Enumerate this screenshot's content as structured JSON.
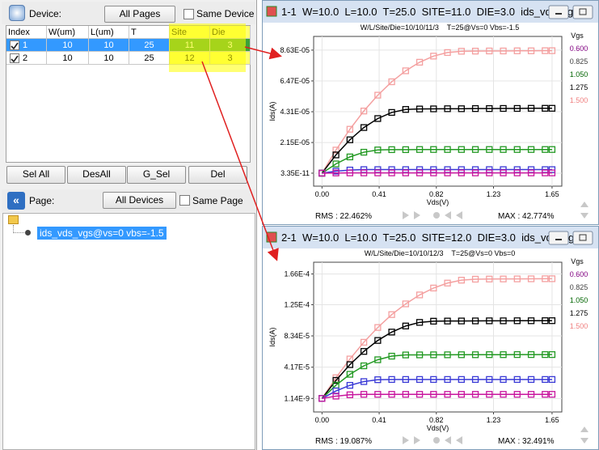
{
  "device_panel": {
    "label": "Device:",
    "all_pages_button": "All Pages",
    "same_device_checkbox": "Same Device",
    "table": {
      "columns": [
        "Index",
        "W(um)",
        "L(um)",
        "T",
        "Site",
        "Die"
      ],
      "rows": [
        [
          1,
          10,
          10,
          25,
          11,
          3
        ],
        [
          2,
          10,
          10,
          25,
          12,
          3
        ]
      ]
    }
  },
  "buttons": [
    "Sel All",
    "DesAll",
    "G_Sel",
    "Del"
  ],
  "page_panel": {
    "label": "Page:",
    "all_devices_button": "All Devices",
    "same_page_checkbox": "Same Page",
    "tree_item": "ids_vds_vgs@vs=0 vbs=-1.5"
  },
  "charts": [
    {
      "window_title": "1-1  W=10.0  L=10.0  T=25.0  SITE=11.0  DIE=3.0  ids_vds_vgs...",
      "rms": "RMS : 22.462%",
      "max": "MAX : 42.774%",
      "chart_data": {
        "type": "line",
        "subtitle": "W/L/Site/Die=10/10/11/3    T=25@Vs=0 Vbs=-1.5",
        "y_label": "Ids(A)",
        "x_label": "Vds(V)",
        "legend_title": "Vgs",
        "grid": true,
        "x": [
          0,
          0.1,
          0.2,
          0.3,
          0.4,
          0.5,
          0.6,
          0.7,
          0.8,
          0.9,
          1.0,
          1.1,
          1.2,
          1.3,
          1.4,
          1.5,
          1.6,
          1.65
        ],
        "xlim": [
          -0.06,
          1.72
        ],
        "xticks": [
          {
            "value": 0,
            "label": "0.00"
          },
          0.41,
          0.82,
          1.23,
          1.65
        ],
        "ylim": [
          -9.1e-06,
          9.59e-05
        ],
        "yticks": [
          {
            "value": 3.35e-11,
            "label": "3.35E-11"
          },
          {
            "value": 2.15e-05,
            "label": "2.15E-05"
          },
          {
            "value": 4.31e-05,
            "label": "4.31E-05"
          },
          {
            "value": 6.47e-05,
            "label": "6.47E-05"
          },
          {
            "value": 8.63e-05,
            "label": "8.63E-05"
          }
        ],
        "series": [
          {
            "name": "0.600",
            "color": "#c8169e",
            "text_color": "#800080",
            "values": [
              0,
              1.5e-07,
              2e-07,
              2e-07,
              2e-07,
              2e-07,
              2e-07,
              2e-07,
              2e-07,
              2e-07,
              2e-07,
              2e-07,
              2e-07,
              2e-07,
              2e-07,
              2e-07,
              2e-07,
              2e-07
            ]
          },
          {
            "name": "0.825",
            "color": "#3a3ad6",
            "text_color": "#404040",
            "values": [
              0,
              1.4e-06,
              2.2e-06,
              2.5e-06,
              2.5e-06,
              2.5e-06,
              2.5e-06,
              2.5e-06,
              2.5e-06,
              2.5e-06,
              2.5e-06,
              2.5e-06,
              2.5e-06,
              2.5e-06,
              2.5e-06,
              2.5e-06,
              2.5e-06,
              2.5e-06
            ]
          },
          {
            "name": "1.050",
            "color": "#229922",
            "text_color": "#006400",
            "values": [
              0,
              6.5e-06,
              1.14e-05,
              1.47e-05,
              1.63e-05,
              1.65e-05,
              1.65e-05,
              1.66e-05,
              1.66e-05,
              1.66e-05,
              1.66e-05,
              1.66e-05,
              1.66e-05,
              1.66e-05,
              1.66e-05,
              1.66e-05,
              1.66e-05,
              1.66e-05
            ]
          },
          {
            "name": "1.275",
            "color": "#000000",
            "text_color": "#000000",
            "values": [
              0,
              1.28e-05,
              2.34e-05,
              3.2e-05,
              3.83e-05,
              4.26e-05,
              4.47e-05,
              4.5e-05,
              4.51e-05,
              4.52e-05,
              4.52e-05,
              4.53e-05,
              4.53e-05,
              4.54e-05,
              4.54e-05,
              4.55e-05,
              4.55e-05,
              4.55e-05
            ]
          },
          {
            "name": "1.500",
            "color": "#f4a0a0",
            "text_color": "#f08080",
            "values": [
              0,
              1.62e-05,
              3.08e-05,
              4.36e-05,
              5.47e-05,
              6.41e-05,
              7.18e-05,
              7.78e-05,
              8.21e-05,
              8.46e-05,
              8.55e-05,
              8.56e-05,
              8.57e-05,
              8.57e-05,
              8.58e-05,
              8.58e-05,
              8.59e-05,
              8.59e-05
            ]
          }
        ]
      }
    },
    {
      "window_title": "2-1  W=10.0  L=10.0  T=25.0  SITE=12.0  DIE=3.0  ids_vds_vgs...",
      "rms": "RMS : 19.087%",
      "max": "MAX : 32.491%",
      "chart_data": {
        "type": "line",
        "subtitle": "W/L/Site/Die=10/10/12/3    T=25@Vs=0 Vbs=0",
        "y_label": "Ids(A)",
        "x_label": "Vds(V)",
        "legend_title": "Vgs",
        "grid": true,
        "x": [
          0,
          0.1,
          0.2,
          0.3,
          0.4,
          0.5,
          0.6,
          0.7,
          0.8,
          0.9,
          1.0,
          1.1,
          1.2,
          1.3,
          1.4,
          1.5,
          1.6,
          1.65
        ],
        "xlim": [
          -0.06,
          1.72
        ],
        "xticks": [
          {
            "value": 0,
            "label": "0.00"
          },
          0.41,
          0.82,
          1.23,
          1.65
        ],
        "ylim": [
          -1.8e-05,
          0.0001816
        ],
        "yticks": [
          {
            "value": 1.14e-09,
            "label": "1.14E-9"
          },
          {
            "value": 4.17e-05,
            "label": "4.17E-5"
          },
          {
            "value": 8.34e-05,
            "label": "8.34E-5"
          },
          {
            "value": 0.000125,
            "label": "1.25E-4"
          },
          {
            "value": 0.000166,
            "label": "1.66E-4"
          }
        ],
        "series": [
          {
            "name": "0.600",
            "color": "#c8169e",
            "text_color": "#800080",
            "values": [
              0,
              3.1e-06,
              4.9e-06,
              5.5e-06,
              5.5e-06,
              5.5e-06,
              5.5e-06,
              5.5e-06,
              5.5e-06,
              5.5e-06,
              5.5e-06,
              5.5e-06,
              5.5e-06,
              5.5e-06,
              5.5e-06,
              5.5e-06,
              5.5e-06,
              5.5e-06
            ]
          },
          {
            "name": "0.825",
            "color": "#3a3ad6",
            "text_color": "#404040",
            "values": [
              0,
              1e-05,
              1.75e-05,
              2.25e-05,
              2.5e-05,
              2.53e-05,
              2.53e-05,
              2.53e-05,
              2.53e-05,
              2.53e-05,
              2.53e-05,
              2.53e-05,
              2.53e-05,
              2.53e-05,
              2.53e-05,
              2.53e-05,
              2.53e-05,
              2.53e-05
            ]
          },
          {
            "name": "1.050",
            "color": "#229922",
            "text_color": "#006400",
            "values": [
              0,
              1.77e-05,
              3.22e-05,
              4.35e-05,
              5.16e-05,
              5.64e-05,
              5.8e-05,
              5.81e-05,
              5.82e-05,
              5.82e-05,
              5.83e-05,
              5.83e-05,
              5.84e-05,
              5.84e-05,
              5.85e-05,
              5.85e-05,
              5.85e-05,
              5.85e-05
            ]
          },
          {
            "name": "1.275",
            "color": "#000000",
            "text_color": "#000000",
            "values": [
              0,
              2.41e-05,
              4.51e-05,
              6.27e-05,
              7.73e-05,
              8.85e-05,
              9.66e-05,
              0.0001014,
              0.000103,
              0.0001032,
              0.0001033,
              0.0001034,
              0.0001035,
              0.0001035,
              0.0001036,
              0.0001036,
              0.0001037,
              0.0001037
            ]
          },
          {
            "name": "1.500",
            "color": "#f4a0a0",
            "text_color": "#f08080",
            "values": [
              0,
              2.77e-05,
              5.26e-05,
              7.49e-05,
              9.46e-05,
              0.0001118,
              0.0001261,
              0.000138,
              0.0001472,
              0.0001538,
              0.0001577,
              0.000159,
              0.0001592,
              0.0001593,
              0.0001594,
              0.0001595,
              0.0001596,
              0.0001596
            ]
          }
        ]
      }
    }
  ]
}
